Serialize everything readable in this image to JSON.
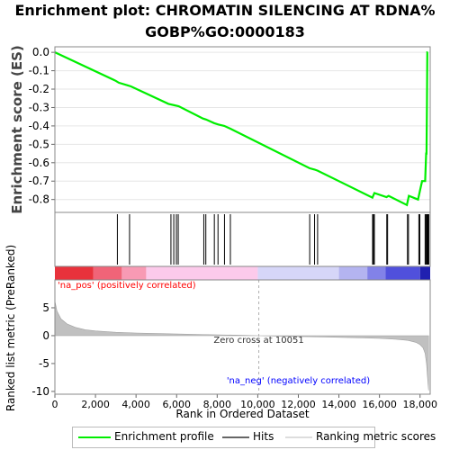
{
  "title": {
    "line1": "Enrichment plot: CHROMATIN SILENCING AT RDNA%",
    "line2": "GOBP%GO:0000183"
  },
  "colors": {
    "enrichment": "#00ee00",
    "hits": "#000000",
    "metric": "#c0c0c0",
    "pos": "#ff0000",
    "neg": "#0000ff"
  },
  "chart_data": [
    {
      "type": "line",
      "name": "enrichment",
      "ylabel": "Enrichment score (ES)",
      "xlim": [
        0,
        18500
      ],
      "ylim": [
        -0.87,
        0.03
      ],
      "yticks": [
        "0.0",
        "-0.1",
        "-0.2",
        "-0.3",
        "-0.4",
        "-0.5",
        "-0.6",
        "-0.7",
        "-0.8"
      ],
      "ytick_values": [
        0.0,
        -0.1,
        -0.2,
        -0.3,
        -0.4,
        -0.5,
        -0.6,
        -0.7,
        -0.8
      ],
      "series": [
        {
          "name": "Enrichment profile",
          "x": [
            0,
            3000,
            3150,
            3600,
            3750,
            5600,
            5900,
            6100,
            7300,
            7450,
            7850,
            8050,
            8350,
            8650,
            12550,
            12800,
            12950,
            15650,
            15750,
            16350,
            16450,
            17350,
            17450,
            17900,
            18000,
            18100,
            18250,
            18300,
            18320,
            18340,
            18360,
            18380
          ],
          "y": [
            0.0,
            -0.155,
            -0.165,
            -0.18,
            -0.185,
            -0.28,
            -0.288,
            -0.293,
            -0.36,
            -0.365,
            -0.385,
            -0.392,
            -0.4,
            -0.415,
            -0.63,
            -0.637,
            -0.643,
            -0.79,
            -0.765,
            -0.787,
            -0.78,
            -0.83,
            -0.78,
            -0.8,
            -0.75,
            -0.7,
            -0.7,
            -0.55,
            -0.55,
            -0.28,
            0.0,
            0.0
          ]
        }
      ]
    },
    {
      "type": "scatter",
      "name": "hits",
      "hit_positions": [
        3080,
        3680,
        5720,
        5860,
        5990,
        6080,
        7340,
        7440,
        7860,
        8040,
        8360,
        8650,
        12560,
        12800,
        12950,
        15660,
        15700,
        15750,
        16360,
        16400,
        17380,
        17430,
        17940,
        17990,
        18250,
        18290,
        18330,
        18360,
        18390,
        18410,
        18430
      ]
    },
    {
      "type": "heatmap",
      "name": "ranking-colorbar",
      "segments": [
        {
          "x0": 0,
          "x1": 1900,
          "color": "#e8323c"
        },
        {
          "x0": 1900,
          "x1": 3300,
          "color": "#f06478"
        },
        {
          "x0": 3300,
          "x1": 4500,
          "color": "#f89ab4"
        },
        {
          "x0": 4500,
          "x1": 10000,
          "color": "#fccaeb"
        },
        {
          "x0": 10000,
          "x1": 14000,
          "color": "#d6d6f8"
        },
        {
          "x0": 14000,
          "x1": 15400,
          "color": "#b4b4f0"
        },
        {
          "x0": 15400,
          "x1": 16300,
          "color": "#8282e8"
        },
        {
          "x0": 16300,
          "x1": 18000,
          "color": "#5050dc"
        },
        {
          "x0": 18000,
          "x1": 18500,
          "color": "#2020b0"
        }
      ]
    },
    {
      "type": "area",
      "name": "ranked-metric",
      "ylabel": "Ranked list metric (PreRanked)",
      "xlabel": "Rank in Ordered Dataset",
      "xlim": [
        0,
        18500
      ],
      "ylim": [
        -10.5,
        10
      ],
      "xticks": [
        "0",
        "2,000",
        "4,000",
        "6,000",
        "8,000",
        "10,000",
        "12,000",
        "14,000",
        "16,000",
        "18,000"
      ],
      "xtick_values": [
        0,
        2000,
        4000,
        6000,
        8000,
        10000,
        12000,
        14000,
        16000,
        18000
      ],
      "yticks": [
        "5",
        "0",
        "-5",
        "-10"
      ],
      "ytick_values": [
        5,
        0,
        -5,
        -10
      ],
      "x": [
        0,
        100,
        300,
        600,
        1000,
        1500,
        2000,
        3000,
        4000,
        5000,
        6000,
        7000,
        8000,
        9000,
        10051,
        11000,
        12000,
        13000,
        14000,
        15000,
        16000,
        16800,
        17400,
        17800,
        18000,
        18150,
        18250,
        18320,
        18380,
        18420
      ],
      "values": [
        6.2,
        4.4,
        3.0,
        2.1,
        1.5,
        1.05,
        0.85,
        0.6,
        0.48,
        0.38,
        0.3,
        0.23,
        0.16,
        0.09,
        0.0,
        -0.08,
        -0.15,
        -0.22,
        -0.3,
        -0.38,
        -0.5,
        -0.65,
        -0.85,
        -1.2,
        -1.6,
        -2.2,
        -3.2,
        -5.0,
        -8.0,
        -9.8
      ],
      "annotations": {
        "pos_label": "'na_pos' (positively correlated)",
        "neg_label": "'na_neg' (negatively correlated)",
        "zero_cross": "Zero cross at 10051",
        "zero_cross_x": 10051
      }
    }
  ],
  "legend": {
    "enrichment": "Enrichment profile",
    "hits": "Hits",
    "ranking": "Ranking metric scores"
  }
}
